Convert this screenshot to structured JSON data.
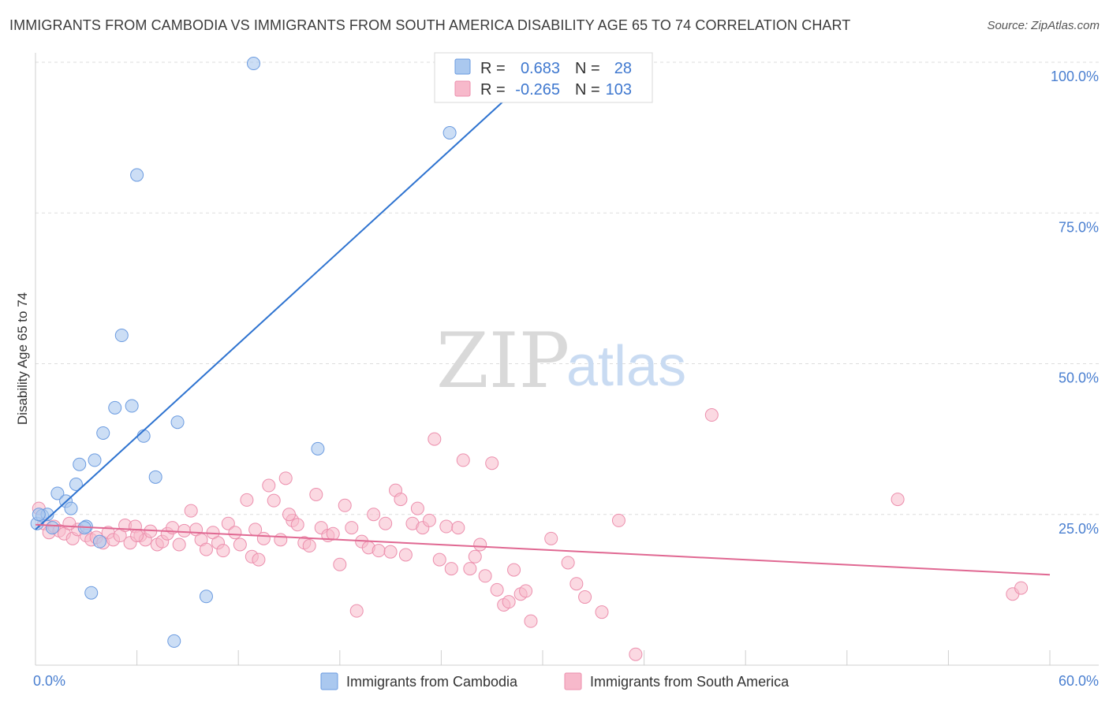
{
  "title": "IMMIGRANTS FROM CAMBODIA VS IMMIGRANTS FROM SOUTH AMERICA DISABILITY AGE 65 TO 74 CORRELATION CHART",
  "source": "Source: ZipAtlas.com",
  "watermark": {
    "zip": "ZIP",
    "atlas": "atlas"
  },
  "colors": {
    "cambodia_fill": "#aac8ef",
    "cambodia_stroke": "#6b9be0",
    "cambodia_line": "#2e73d0",
    "sa_fill": "#f7b9cb",
    "sa_stroke": "#ec8fad",
    "sa_line": "#e06892",
    "value_blue": "#3f78cf",
    "grid": "#dddddd"
  },
  "legend": {
    "rows": [
      {
        "r_label": "R =",
        "r_value": "0.683",
        "n_label": "N =",
        "n_value": "28"
      },
      {
        "r_label": "R =",
        "r_value": "-0.265",
        "n_label": "N =",
        "n_value": "103"
      }
    ]
  },
  "bottom_legend": {
    "cambodia": "Immigrants from Cambodia",
    "south_america": "Immigrants from South America"
  },
  "chart_data": {
    "type": "scatter",
    "title": "IMMIGRANTS FROM CAMBODIA VS IMMIGRANTS FROM SOUTH AMERICA DISABILITY AGE 65 TO 74 CORRELATION CHART",
    "xlabel": "",
    "ylabel": "Disability Age 65 to 74",
    "xlim": [
      0,
      60
    ],
    "ylim": [
      0,
      100
    ],
    "x_tick_labels": [
      "0.0%",
      "60.0%"
    ],
    "y_ticks": [
      25,
      50,
      75,
      100
    ],
    "y_tick_labels": [
      "25.0%",
      "50.0%",
      "75.0%",
      "100.0%"
    ],
    "grid": "horizontal dashed",
    "legend_position": "top-center",
    "series": [
      {
        "name": "Immigrants from Cambodia",
        "R": 0.683,
        "N": 28,
        "trend": [
          [
            0,
            22.5
          ],
          [
            30,
            99.5
          ]
        ],
        "points": [
          [
            0.1,
            23.5
          ],
          [
            0.4,
            24.8
          ],
          [
            0.7,
            25.0
          ],
          [
            1.0,
            22.8
          ],
          [
            1.3,
            28.5
          ],
          [
            1.8,
            27.2
          ],
          [
            2.1,
            26.0
          ],
          [
            2.4,
            30.0
          ],
          [
            2.6,
            33.3
          ],
          [
            3.0,
            23.0
          ],
          [
            3.3,
            12.0
          ],
          [
            3.5,
            34.0
          ],
          [
            3.8,
            20.5
          ],
          [
            4.0,
            38.5
          ],
          [
            4.7,
            42.7
          ],
          [
            5.1,
            54.7
          ],
          [
            5.7,
            43.0
          ],
          [
            6.0,
            81.3
          ],
          [
            6.4,
            38.0
          ],
          [
            7.1,
            31.2
          ],
          [
            8.4,
            40.3
          ],
          [
            8.2,
            4.0
          ],
          [
            10.1,
            11.4
          ],
          [
            12.9,
            99.8
          ],
          [
            16.7,
            35.9
          ],
          [
            24.5,
            88.3
          ],
          [
            0.2,
            25.0
          ],
          [
            2.9,
            22.8
          ]
        ]
      },
      {
        "name": "Immigrants from South America",
        "R": -0.265,
        "N": 103,
        "trend": [
          [
            0,
            23.3
          ],
          [
            60,
            15.0
          ]
        ],
        "points": [
          [
            0.2,
            26.0
          ],
          [
            0.5,
            23.5
          ],
          [
            0.8,
            22.0
          ],
          [
            1.1,
            23.0
          ],
          [
            1.4,
            22.3
          ],
          [
            1.7,
            21.8
          ],
          [
            2.2,
            21.0
          ],
          [
            2.5,
            22.5
          ],
          [
            3.0,
            21.5
          ],
          [
            3.3,
            20.8
          ],
          [
            3.6,
            21.2
          ],
          [
            4.0,
            20.3
          ],
          [
            4.3,
            22.0
          ],
          [
            4.6,
            20.8
          ],
          [
            5.0,
            21.5
          ],
          [
            5.3,
            23.2
          ],
          [
            5.6,
            20.3
          ],
          [
            5.9,
            23.0
          ],
          [
            6.2,
            21.5
          ],
          [
            6.5,
            20.8
          ],
          [
            6.8,
            22.2
          ],
          [
            7.2,
            20.0
          ],
          [
            7.5,
            20.5
          ],
          [
            7.8,
            21.8
          ],
          [
            8.1,
            22.8
          ],
          [
            8.5,
            20.0
          ],
          [
            8.8,
            22.3
          ],
          [
            9.2,
            25.6
          ],
          [
            9.5,
            22.5
          ],
          [
            9.8,
            20.8
          ],
          [
            10.1,
            19.2
          ],
          [
            10.5,
            22.0
          ],
          [
            10.8,
            20.3
          ],
          [
            11.1,
            19.0
          ],
          [
            11.4,
            23.5
          ],
          [
            11.8,
            22.0
          ],
          [
            12.1,
            20.0
          ],
          [
            12.5,
            27.4
          ],
          [
            12.8,
            18.0
          ],
          [
            13.2,
            17.5
          ],
          [
            13.5,
            21.0
          ],
          [
            13.8,
            29.8
          ],
          [
            14.1,
            27.3
          ],
          [
            14.5,
            20.8
          ],
          [
            14.8,
            31.0
          ],
          [
            15.2,
            24.0
          ],
          [
            15.5,
            23.3
          ],
          [
            15.9,
            20.3
          ],
          [
            16.2,
            19.8
          ],
          [
            16.6,
            28.3
          ],
          [
            16.9,
            22.8
          ],
          [
            17.3,
            21.5
          ],
          [
            17.6,
            21.8
          ],
          [
            18.0,
            16.7
          ],
          [
            18.3,
            26.5
          ],
          [
            18.7,
            22.8
          ],
          [
            19.0,
            9.0
          ],
          [
            19.3,
            20.5
          ],
          [
            19.7,
            19.5
          ],
          [
            20.0,
            25.0
          ],
          [
            20.3,
            19.0
          ],
          [
            20.7,
            23.5
          ],
          [
            21.0,
            18.8
          ],
          [
            21.3,
            29.0
          ],
          [
            21.6,
            27.5
          ],
          [
            21.9,
            18.3
          ],
          [
            22.3,
            23.5
          ],
          [
            22.6,
            26.0
          ],
          [
            22.9,
            22.8
          ],
          [
            23.3,
            24.0
          ],
          [
            23.6,
            37.5
          ],
          [
            23.9,
            17.5
          ],
          [
            24.3,
            23.0
          ],
          [
            24.6,
            16.0
          ],
          [
            25.0,
            22.8
          ],
          [
            25.3,
            34.0
          ],
          [
            25.7,
            16.0
          ],
          [
            26.0,
            18.0
          ],
          [
            26.3,
            20.0
          ],
          [
            26.6,
            14.8
          ],
          [
            27.0,
            33.5
          ],
          [
            27.3,
            12.5
          ],
          [
            27.7,
            10.0
          ],
          [
            28.0,
            10.5
          ],
          [
            28.3,
            15.8
          ],
          [
            28.7,
            11.8
          ],
          [
            29.0,
            12.3
          ],
          [
            29.3,
            7.3
          ],
          [
            30.5,
            21.0
          ],
          [
            31.5,
            17.0
          ],
          [
            32.0,
            13.5
          ],
          [
            32.5,
            11.3
          ],
          [
            33.5,
            8.8
          ],
          [
            34.5,
            24.0
          ],
          [
            35.5,
            1.8
          ],
          [
            40.0,
            41.5
          ],
          [
            51.0,
            27.5
          ],
          [
            57.8,
            11.8
          ],
          [
            58.3,
            12.8
          ],
          [
            15.0,
            25.0
          ],
          [
            2.0,
            23.5
          ],
          [
            6.0,
            21.5
          ],
          [
            13.0,
            22.5
          ]
        ]
      }
    ]
  }
}
